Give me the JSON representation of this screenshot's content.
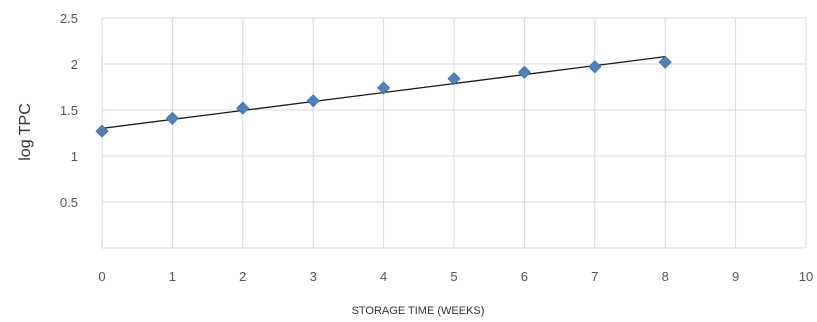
{
  "chart_data": {
    "type": "scatter",
    "title": "",
    "xlabel": "STORAGE TIME (WEEKS)",
    "ylabel": "log TPC",
    "xlim": [
      0,
      10
    ],
    "ylim": [
      0,
      2.5
    ],
    "x_ticks": [
      "0",
      "1",
      "2",
      "3",
      "4",
      "5",
      "6",
      "7",
      "8",
      "9",
      "10"
    ],
    "y_ticks": [
      "0.5",
      "1",
      "1.5",
      "2",
      "2.5"
    ],
    "grid": true,
    "legend": "none",
    "series": [
      {
        "x": [
          0,
          1,
          2,
          3,
          4,
          5,
          6,
          7,
          8
        ],
        "y": [
          1.27,
          1.41,
          1.52,
          1.6,
          1.74,
          1.84,
          1.91,
          1.97,
          2.02
        ],
        "marker": "diamond",
        "color": "#4f81bd"
      }
    ],
    "trendline": {
      "type": "linear",
      "x_range": [
        0,
        8
      ],
      "y_at_start": 1.3,
      "y_at_end": 2.08,
      "color": "#1a1a1a"
    }
  }
}
